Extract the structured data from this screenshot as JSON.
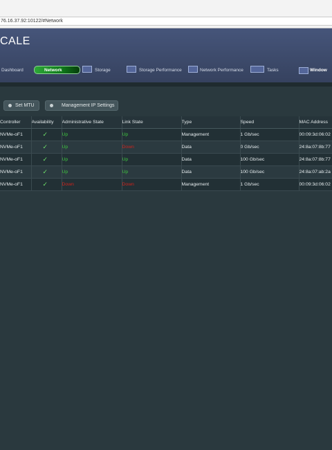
{
  "browser": {
    "url": "76.16.37.92:10122/#Network"
  },
  "header": {
    "title": "CALE"
  },
  "nav": [
    "Dashboard",
    "Network",
    "Storage",
    "Storage Performance",
    "Network Performance",
    "Tasks",
    "Window"
  ],
  "toolbar": [
    "Set MTU",
    "Management IP Settings"
  ],
  "table": {
    "columns": [
      "Controller",
      "Availability",
      "Administrative State",
      "Link State",
      "Type",
      "Speed",
      "MAC Address"
    ],
    "rows": [
      [
        "NVMe-oF1",
        "✓",
        "Up",
        "Up",
        "Management",
        "1 Gb/sec",
        "00:09:3d:06:02"
      ],
      [
        "NVMe-oF1",
        "✓",
        "Up",
        "Down",
        "Data",
        "0 Gb/sec",
        "24:8a:07:8b:77"
      ],
      [
        "NVMe-oF1",
        "✓",
        "Up",
        "Up",
        "Data",
        "100 Gb/sec",
        "24:8a:07:8b:77"
      ],
      [
        "NVMe-oF1",
        "✓",
        "Up",
        "Up",
        "Data",
        "100 Gb/sec",
        "24:8a:07:ab:2a"
      ],
      [
        "NVMe-oF1",
        "✓",
        "Down",
        "Down",
        "Management",
        "1 Gb/sec",
        "00:09:3d:06:02"
      ]
    ]
  }
}
